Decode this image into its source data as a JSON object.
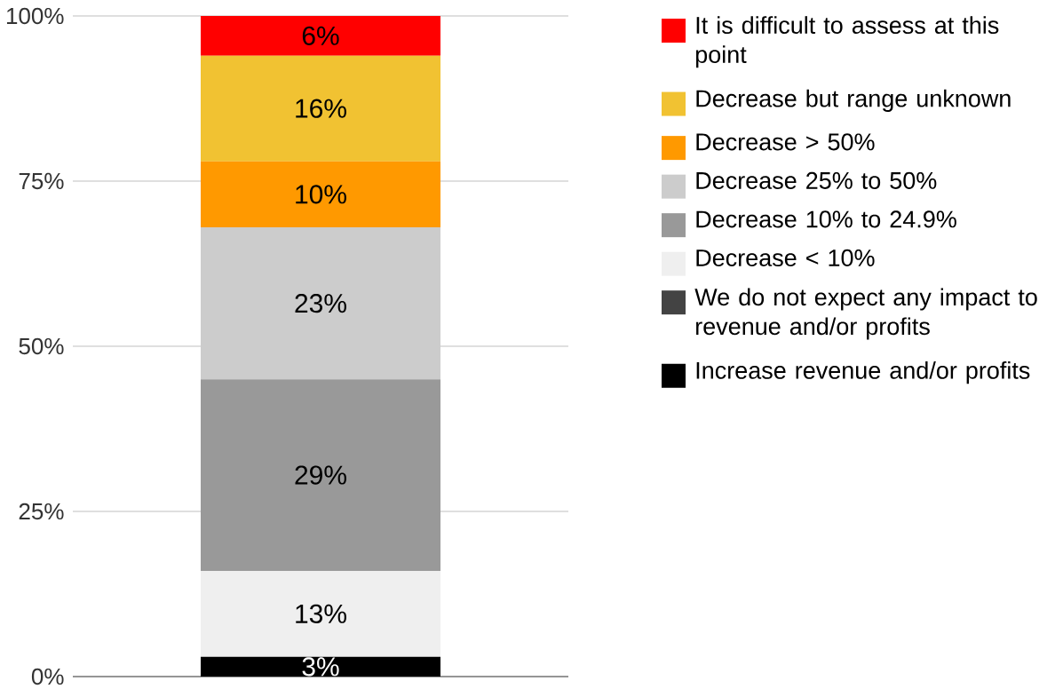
{
  "chart_data": {
    "type": "bar",
    "stacked": true,
    "categories": [
      null
    ],
    "series": [
      {
        "name": "Increase revenue and/or profits",
        "color": "#000000",
        "values": [
          3
        ],
        "value_labels": [
          "3%"
        ]
      },
      {
        "name": "We do not expect any impact to revenue and/or profits",
        "color": "#434343",
        "values": [
          0
        ],
        "value_labels": [
          null
        ]
      },
      {
        "name": "Decrease < 10%",
        "color": "#efefef",
        "values": [
          13
        ],
        "value_labels": [
          "13%"
        ]
      },
      {
        "name": "Decrease 10% to 24.9%",
        "color": "#999999",
        "values": [
          29
        ],
        "value_labels": [
          "29%"
        ]
      },
      {
        "name": "Decrease 25% to 50%",
        "color": "#cccccc",
        "values": [
          23
        ],
        "value_labels": [
          "23%"
        ]
      },
      {
        "name": "Decrease > 50%",
        "color": "#ff9900",
        "values": [
          10
        ],
        "value_labels": [
          "10%"
        ]
      },
      {
        "name": "Decrease but range unknown",
        "color": "#f1c232",
        "values": [
          16
        ],
        "value_labels": [
          "16%"
        ]
      },
      {
        "name": "It is difficult to assess at this point",
        "color": "#ff0000",
        "values": [
          6
        ],
        "value_labels": [
          "6%"
        ]
      }
    ],
    "ylim": [
      0,
      100
    ],
    "yticks": [
      {
        "value": 0,
        "label": "0%"
      },
      {
        "value": 25,
        "label": "25%"
      },
      {
        "value": 50,
        "label": "50%"
      },
      {
        "value": 75,
        "label": "75%"
      },
      {
        "value": 100,
        "label": "100%"
      }
    ],
    "grid": "y",
    "legend": "right"
  }
}
